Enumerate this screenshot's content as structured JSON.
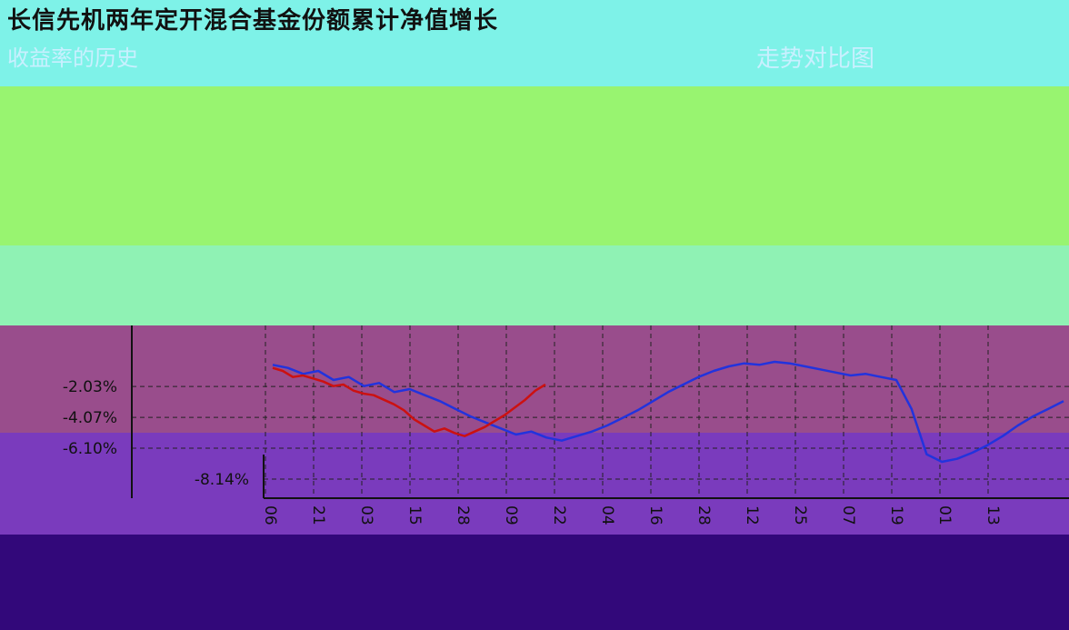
{
  "header": {
    "title": "长信先机两年定开混合基金份额累计净值增长",
    "subtitle_left": "收益率的历史",
    "subtitle_right": "走势对比图"
  },
  "colors": {
    "top_band": "#7ef2e8",
    "green_band": "#98f470",
    "mint_band": "#8ff2b4",
    "plot_bg": "#994d8c",
    "lower_bg": "#7a3bbd",
    "footer_bg": "#32087a",
    "fund_line": "#2233dd",
    "benchmark_line": "#cc1111",
    "yellow_line": "#f2ec3a",
    "cyan_line": "#8ee8ff"
  },
  "chart_data": {
    "type": "line",
    "title": "",
    "xlabel": "",
    "ylabel": "",
    "y_tick_labels": [
      "-2.03%",
      "-4.07%",
      "-6.10%",
      "-8.14%"
    ],
    "y_ticks": [
      -2.03,
      -4.07,
      -6.1,
      -8.14
    ],
    "x_tick_labels": [
      "06",
      "21",
      "03",
      "15",
      "28",
      "09",
      "22",
      "04",
      "16",
      "28",
      "12",
      "25",
      "07",
      "19",
      "01",
      "13"
    ],
    "ylim": [
      -9.4,
      2.0
    ],
    "grid": true,
    "series": [
      {
        "values": [
          -0.6,
          -0.8,
          -1.2,
          -1.0,
          -1.6,
          -1.4,
          -2.0,
          -1.8,
          -2.4,
          -2.2,
          -2.6,
          -3.0,
          -3.5,
          -4.0,
          -4.4,
          -4.8,
          -5.2,
          -5.0,
          -5.4,
          -5.6,
          -5.3,
          -5.0,
          -4.6,
          -4.1,
          -3.6,
          -3.0,
          -2.4,
          -1.9,
          -1.4,
          -1.0,
          -0.7,
          -0.5,
          -0.6,
          -0.4,
          -0.5,
          -0.7,
          -0.9,
          -1.1,
          -1.3,
          -1.2,
          -1.4,
          -1.6,
          -3.5,
          -6.5,
          -7.0,
          -6.8,
          -6.4,
          -5.9,
          -5.3,
          -4.6,
          -4.0,
          -3.5,
          -3.0
        ]
      },
      {
        "values": [
          -0.8,
          -1.0,
          -1.4,
          -1.3,
          -1.5,
          -1.7,
          -2.0,
          -1.9,
          -2.3,
          -2.5,
          -2.6,
          -2.9,
          -3.2,
          -3.6,
          -4.2,
          -4.6,
          -5.0,
          -4.8,
          -5.1,
          -5.3,
          -5.0,
          -4.7,
          -4.3,
          -3.9,
          -3.4,
          -2.9,
          -2.3,
          -1.9
        ]
      }
    ]
  }
}
